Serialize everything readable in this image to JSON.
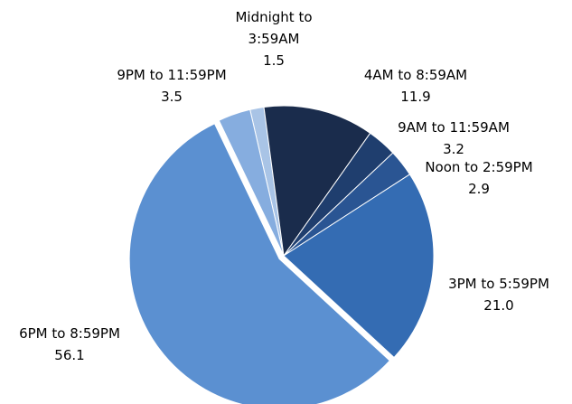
{
  "chart_data": {
    "type": "pie",
    "title": "",
    "categories": [
      "Midnight to 3:59AM",
      "4AM to 8:59AM",
      "9AM to 11:59AM",
      "Noon to 2:59PM",
      "3PM to 5:59PM",
      "6PM to 8:59PM",
      "9PM to 11:59PM"
    ],
    "values": [
      1.5,
      11.9,
      3.2,
      2.9,
      21.0,
      56.1,
      3.5
    ],
    "value_labels": [
      "1.5",
      "11.9",
      "3.2",
      "2.9",
      "21.0",
      "56.1",
      "3.5"
    ],
    "label_lines": [
      [
        "Midnight to",
        "3:59AM"
      ],
      [
        "4AM to 8:59AM"
      ],
      [
        "9AM to 11:59AM"
      ],
      [
        "Noon to 2:59PM"
      ],
      [
        "3PM to 5:59PM"
      ],
      [
        "6PM to 8:59PM"
      ],
      [
        "9PM to 11:59PM"
      ]
    ],
    "colors": [
      "#a9c4e6",
      "#1a2c4c",
      "#1f3e6e",
      "#2a5593",
      "#346cb3",
      "#5b90d1",
      "#86addf"
    ],
    "exploded": [
      "6PM to 8:59PM"
    ],
    "start_angle_deg": -13,
    "direction": "clockwise",
    "legend": "none"
  }
}
